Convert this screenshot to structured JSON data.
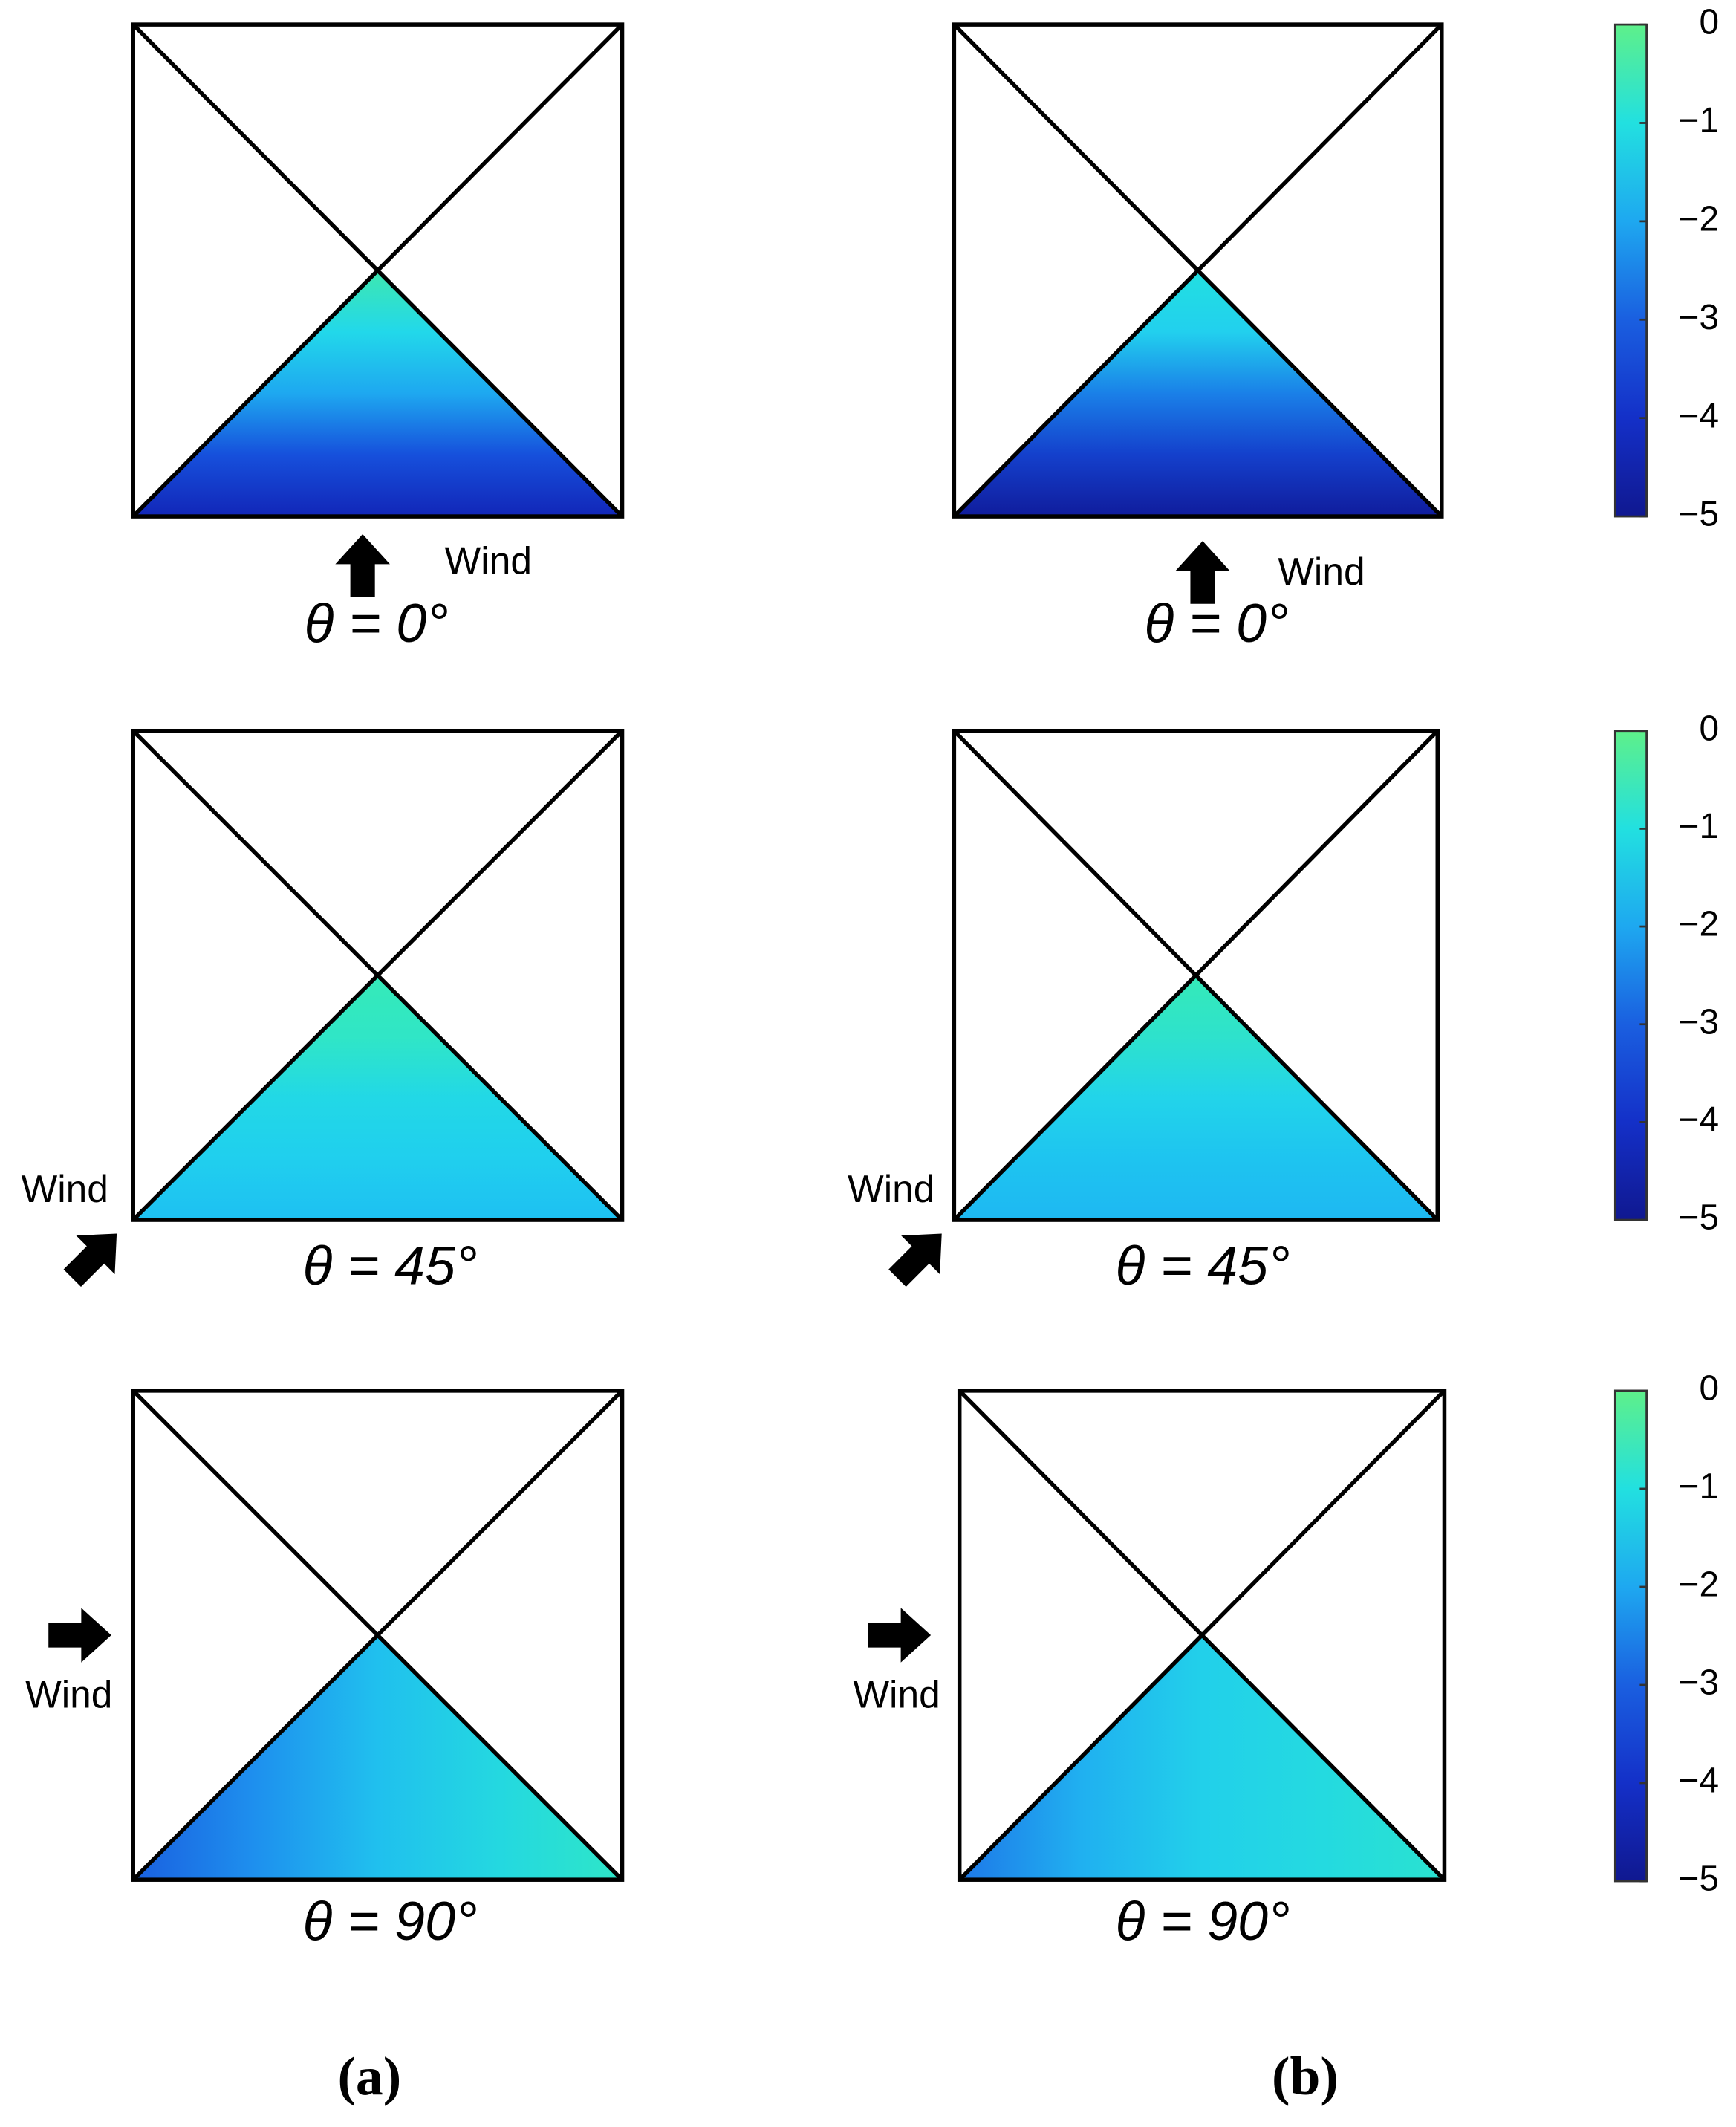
{
  "panels": [
    {
      "angle": "θ = 0°",
      "wind": "Wind"
    },
    {
      "angle": "θ = 0°",
      "wind": "Wind"
    },
    {
      "angle": "θ = 45°",
      "wind": "Wind"
    },
    {
      "angle": "θ = 45°",
      "wind": "Wind"
    },
    {
      "angle": "θ = 90°",
      "wind": "Wind"
    },
    {
      "angle": "θ = 90°",
      "wind": "Wind"
    }
  ],
  "colorbars": [
    {
      "limits": [
        -5,
        0
      ],
      "ticks": [
        0,
        {
          "value": -1,
          "label": "−1"
        },
        {
          "value": -2,
          "label": "−2"
        },
        {
          "value": -3,
          "label": "−3"
        },
        {
          "value": -4,
          "label": "−4"
        },
        {
          "value": -5,
          "label": "−5"
        }
      ]
    },
    {
      "limits": [
        -5,
        0
      ],
      "ticks": [
        0,
        {
          "value": -1,
          "label": "−1"
        },
        {
          "value": -2,
          "label": "−2"
        },
        {
          "value": -3,
          "label": "−3"
        },
        {
          "value": -4,
          "label": "−4"
        },
        {
          "value": -5,
          "label": "−5"
        }
      ]
    },
    {
      "limits": [
        -5,
        0
      ],
      "ticks": [
        0,
        {
          "value": -1,
          "label": "−1"
        },
        {
          "value": -2,
          "label": "−2"
        },
        {
          "value": -3,
          "label": "−3"
        },
        {
          "value": -4,
          "label": "−4"
        },
        {
          "value": -5,
          "label": "−5"
        }
      ]
    }
  ],
  "captions": [
    "(a)",
    "(b)"
  ]
}
